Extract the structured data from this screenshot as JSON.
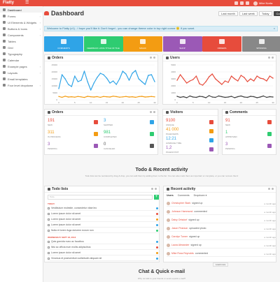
{
  "app": {
    "brand": "Flatty"
  },
  "topbar": {
    "user_name": "Mike Norta"
  },
  "sidebar": {
    "items": [
      {
        "label": "Dashboard",
        "active": true
      },
      {
        "label": "Forms",
        "chevron": true
      },
      {
        "label": "UI Elements & Widgets",
        "chevron": true
      },
      {
        "label": "Buttons & Icons",
        "chevron": true
      },
      {
        "label": "Components",
        "chevron": true
      },
      {
        "label": "Tables"
      },
      {
        "label": "Grid"
      },
      {
        "label": "Typography"
      },
      {
        "label": "Calendar"
      },
      {
        "label": "Example pages",
        "chevron": true
      },
      {
        "label": "Layouts",
        "chevron": true
      },
      {
        "label": "Email templates"
      },
      {
        "label": "Four level dropdown",
        "chevron": true
      }
    ]
  },
  "header": {
    "title": "Dashboard",
    "range_buttons": [
      "Last month",
      "Last week",
      "Today",
      "Custom"
    ],
    "selected_range": "Custom"
  },
  "welcome": {
    "text": "Welcome to Flatty (v1) - I hope you'll like it. Don't forget - you can change theme color in top right corner 🙂 if you want.",
    "close": "×"
  },
  "tiles": [
    {
      "label": "COMMENTS",
      "color": "#2fa4e7",
      "icon": "comment-icon"
    },
    {
      "label": "FEEDBACK LONG TITLE OF TILE",
      "color": "#2ecc71",
      "icon": "thumbs-up-icon"
    },
    {
      "label": "MAGIC",
      "color": "#f39c12",
      "icon": "magic-icon"
    },
    {
      "label": "SHOP",
      "color": "#9b59b6",
      "icon": "shop-icon"
    },
    {
      "label": "ORDERS",
      "color": "#e74c3c",
      "icon": "inbox-icon"
    },
    {
      "label": "SPINNING",
      "color": "#888888",
      "icon": "refresh-icon"
    }
  ],
  "panels": {
    "orders_chart_title": "Orders",
    "users_chart_title": "Users",
    "orders_stats_title": "Orders",
    "visitors_title": "Visitors",
    "comments_title": "Comments",
    "todo_title": "Todo lists",
    "activity_title": "Recent activity"
  },
  "chart_data": [
    {
      "type": "line",
      "title": "Orders",
      "x": [
        0,
        1,
        2,
        3,
        4,
        5,
        6,
        7,
        8,
        9,
        10,
        11,
        12,
        13,
        14,
        15,
        16,
        17,
        18,
        19,
        20,
        21,
        22,
        23,
        24,
        25,
        26,
        27,
        28,
        29,
        30
      ],
      "xticks": [
        0,
        5,
        10,
        15,
        20,
        25,
        30
      ],
      "yticks": [
        0,
        5000,
        10000,
        15000,
        20000,
        25000
      ],
      "ylim": [
        0,
        25000
      ],
      "grid": true,
      "series": [
        {
          "color": "#2fa4e7",
          "values": [
            8000,
            18000,
            15000,
            11000,
            9500,
            17000,
            13000,
            14000,
            20500,
            13000,
            7000,
            12000,
            16000,
            19000,
            18000,
            15500,
            12000,
            13500,
            11000,
            15000,
            20500,
            18500,
            14000,
            19000,
            21000,
            15000,
            13000,
            11000,
            17500,
            18000,
            13000
          ]
        },
        {
          "color": "#f39c12",
          "values": [
            2400,
            1800,
            2600,
            2000,
            2200,
            1900,
            2400,
            2100,
            1700,
            2500,
            2200,
            2000,
            2300,
            1800,
            2400,
            2200,
            2000,
            2600,
            2300,
            1900,
            2100,
            2400,
            2000,
            2200,
            1800,
            2300,
            2500,
            2000,
            2200,
            2400,
            2100
          ]
        }
      ]
    },
    {
      "type": "line",
      "title": "Users",
      "x": [
        0,
        1,
        2,
        3,
        4,
        5,
        6,
        7,
        8,
        9,
        10,
        11,
        12,
        13,
        14,
        15,
        16,
        17,
        18,
        19,
        20,
        21,
        22,
        23,
        24,
        25,
        26,
        27,
        28,
        29,
        30
      ],
      "xticks": [
        0,
        5,
        10,
        15,
        20,
        25,
        30
      ],
      "yticks": [
        0,
        1000,
        2000,
        3000,
        4000,
        5000
      ],
      "ylim": [
        0,
        5000
      ],
      "grid": true,
      "series": [
        {
          "color": "#e74c3c",
          "values": [
            2800,
            3600,
            3000,
            2400,
            2700,
            2900,
            3400,
            2300,
            2100,
            2600,
            3300,
            3700,
            3000,
            2600,
            2200,
            2700,
            2500,
            3400,
            3000,
            2700,
            3500,
            3200,
            2600,
            3000,
            2700,
            3400,
            3100,
            3000,
            2700,
            3400,
            3100
          ]
        },
        {
          "color": "#444444",
          "values": [
            500,
            350,
            450,
            300,
            550,
            400,
            350,
            500,
            450,
            300,
            600,
            400,
            350,
            550,
            450,
            350,
            400,
            500,
            300,
            450,
            550,
            400,
            350,
            500,
            450,
            300,
            400,
            550,
            350,
            450,
            400
          ]
        }
      ]
    }
  ],
  "order_stats": [
    {
      "value": "191",
      "label": "NEW",
      "color": "#e74c3c"
    },
    {
      "value": "3",
      "label": "SHIPPED",
      "color": "#2fa4e7"
    },
    {
      "value": "311",
      "label": "IN PROCESS",
      "color": "#f39c12"
    },
    {
      "value": "981",
      "label": "COMPLETED",
      "color": "#2ecc71"
    },
    {
      "value": "3",
      "label": "PENDING",
      "color": "#9b59b6"
    },
    {
      "value": "0",
      "label": "CANCELED",
      "color": "#555555"
    }
  ],
  "visitor_stats": [
    {
      "value": "9100",
      "label": "UNIQUE",
      "color": "#e74c3c"
    },
    {
      "value": "41 000",
      "label": "PAGEVIEWS",
      "color": "#f39c12"
    },
    {
      "value": "12:21",
      "label": "AVERAGE TIME",
      "color": "#2fa4e7"
    },
    {
      "value": "1,2",
      "label": "PAGES/VISIT",
      "color": "#9b59b6"
    }
  ],
  "comment_stats": [
    {
      "value": "91",
      "label": "NEW",
      "color": "#e74c3c"
    },
    {
      "value": "1",
      "label": "APPROVED",
      "color": "#2ecc71"
    },
    {
      "value": "3",
      "label": "PENDING",
      "color": "#9b59b6"
    }
  ],
  "todo_section": {
    "heading": "Todo & Recent activity",
    "subtitle": "Todo lists can be reordered by drag & drop, you can add them by adding them to the list. You can also mark them as important or complete, or you can remove them!",
    "input_placeholder": "Todo",
    "add_label": "+",
    "groups": [
      {
        "label": "TODAY",
        "items": [
          {
            "text": "Vestibulum molestie, consectetur vitae leo",
            "color": "#2fa4e7"
          },
          {
            "text": "Lorem ipsum dolor sit amet",
            "color": "#e74c3c"
          },
          {
            "text": "Lorem ipsum dolor sit amet",
            "color": "#f39c12"
          },
          {
            "text": "Lorem ipsum dolor sit amet",
            "color": "#2fa4e7"
          },
          {
            "text": "Nulla et lorem fuga dolorem eorum non",
            "color": "#2ecc71"
          }
        ]
      },
      {
        "label": "WEDNESDAY SEPT 18, 2013",
        "items": [
          {
            "text": "Quis gravida nunc ac faucibus",
            "color": "#2fa4e7"
          },
          {
            "text": "Nisi ac officia eum mollis adipiscibus",
            "color": "#e74c3c"
          },
          {
            "text": "Lorem ipsum dolor sit amet",
            "color": "#f39c12"
          },
          {
            "text": "Vivamus et praesentium sollicitudin aliquam sit",
            "color": "#2fa4e7"
          }
        ]
      }
    ]
  },
  "activity": {
    "tabs": [
      "Users",
      "Comments",
      "Dropdown ▾"
    ],
    "rows": [
      {
        "user": "Christopher Stark",
        "action": "signed up",
        "time": "a month ago"
      },
      {
        "user": "Johnson Hammond",
        "action": "commented",
        "time": "a month ago"
      },
      {
        "user": "Daisy Ortsdorf",
        "action": "signed up",
        "time": "a month ago"
      },
      {
        "user": "Jason Pearson",
        "action": "uploaded photo",
        "time": "a month ago"
      },
      {
        "user": "Carolyn Turner",
        "action": "signed up",
        "time": "a month ago"
      },
      {
        "user": "Laura Alexander",
        "action": "signed up",
        "time": "a month ago"
      },
      {
        "user": "Mike Ross Reynolds",
        "action": "commented",
        "time": "a month ago"
      }
    ],
    "load_more": "Load more"
  },
  "chat_section": {
    "heading": "Chat & Quick e-mail",
    "subtitle": "Why not talk to your friends or send a quick e-mail?"
  }
}
